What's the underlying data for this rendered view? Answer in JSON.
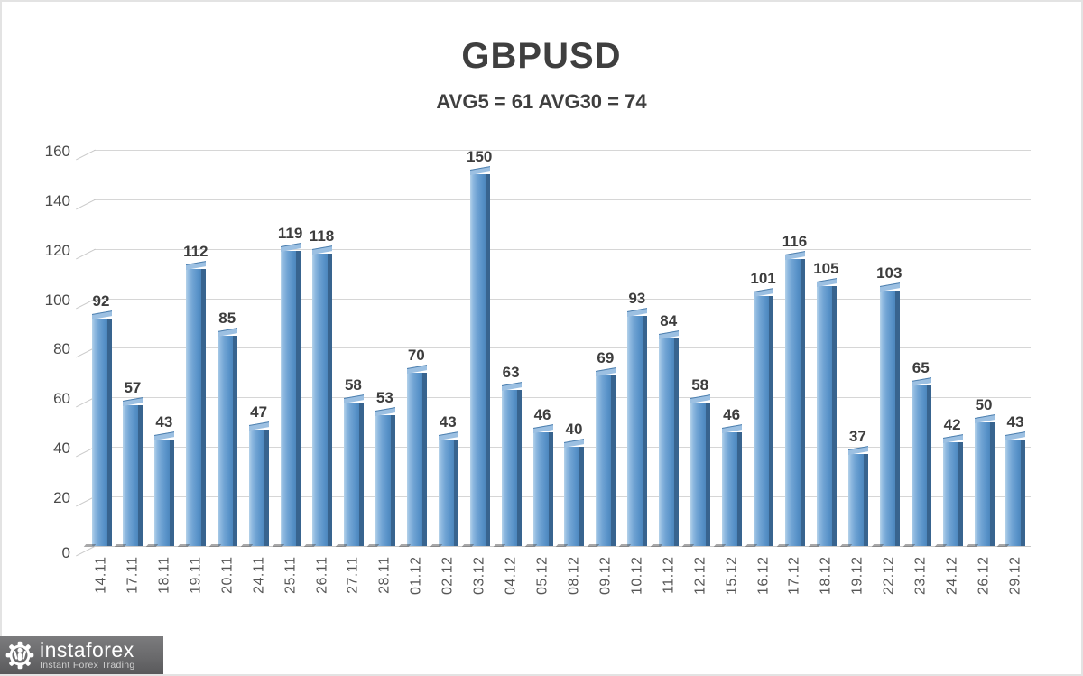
{
  "chart_data": {
    "type": "bar",
    "title": "GBPUSD",
    "subtitle": "AVG5 = 61 AVG30 = 74",
    "categories": [
      "14.11",
      "17.11",
      "18.11",
      "19.11",
      "20.11",
      "24.11",
      "25.11",
      "26.11",
      "27.11",
      "28.11",
      "01.12",
      "02.12",
      "03.12",
      "04.12",
      "05.12",
      "08.12",
      "09.12",
      "10.12",
      "11.12",
      "12.12",
      "15.12",
      "16.12",
      "17.12",
      "18.12",
      "19.12",
      "22.12",
      "23.12",
      "24.12",
      "26.12",
      "29.12"
    ],
    "values": [
      92,
      57,
      43,
      112,
      85,
      47,
      119,
      118,
      58,
      53,
      70,
      43,
      150,
      63,
      46,
      40,
      69,
      93,
      84,
      58,
      46,
      101,
      116,
      105,
      37,
      103,
      65,
      42,
      50,
      43
    ],
    "ylabel": "",
    "xlabel": "",
    "ylim": [
      0,
      160
    ],
    "yticks": [
      0,
      20,
      40,
      60,
      80,
      100,
      120,
      140,
      160
    ],
    "grid": true,
    "legend": "none",
    "style": "3d-bar",
    "colors": {
      "bar_body": "#6fa3d3",
      "bar_highlight": "#b5d2ea",
      "bar_side": "#38648f",
      "gridline": "#d6d6d6",
      "label_text": "#3d3d3d",
      "tick_text": "#4a4a4a"
    }
  },
  "branding": {
    "logo_text": "instaforex",
    "logo_tagline": "Instant Forex Trading",
    "logo_bg": "#6a6a6c",
    "logo_icon": "gear-person-icon"
  }
}
